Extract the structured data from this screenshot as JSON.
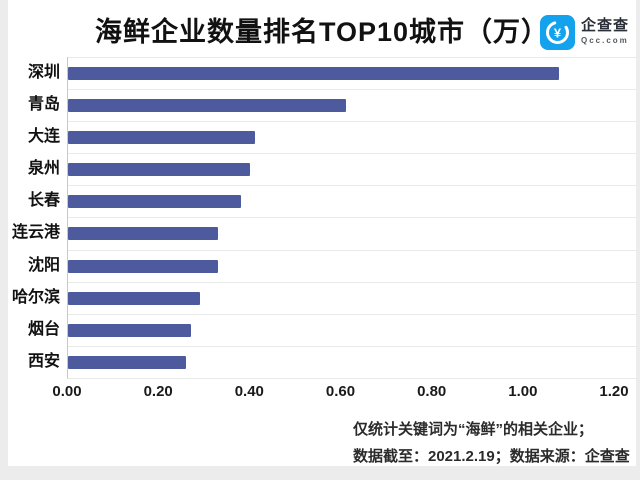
{
  "header": {
    "title": "海鲜企业数量排名TOP10城市（万）",
    "logo": {
      "name": "企查查",
      "domain": "Qcc.com",
      "brand_color": "#14a2ec"
    }
  },
  "chart_data": {
    "type": "bar",
    "orientation": "horizontal",
    "title": "海鲜企业数量排名TOP10城市（万）",
    "categories": [
      "深圳",
      "青岛",
      "大连",
      "泉州",
      "长春",
      "连云港",
      "沈阳",
      "哈尔滨",
      "烟台",
      "西安"
    ],
    "values": [
      1.08,
      0.61,
      0.41,
      0.4,
      0.38,
      0.33,
      0.33,
      0.29,
      0.27,
      0.26
    ],
    "unit": "万",
    "xlim": [
      0,
      1.2
    ],
    "x_ticks": [
      "0.00",
      "0.20",
      "0.40",
      "0.60",
      "0.80",
      "1.00",
      "1.20"
    ],
    "bar_color": "#4d5b9e",
    "grid": "horizontal category separator lines, light gray",
    "legend": "none"
  },
  "footer": {
    "line1": "仅统计关键词为“海鲜”的相关企业；",
    "line2": "数据截至：2021.2.19；数据来源：企查查"
  }
}
